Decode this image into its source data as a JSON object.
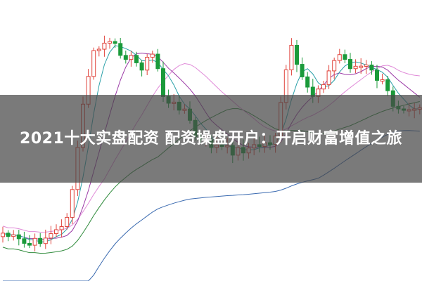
{
  "article": {
    "title": "2021十大实盘配资 配资操盘开户：开启财富增值之旅"
  },
  "colors": {
    "up_candle": "#e0443c",
    "down_candle": "#1a9a3a",
    "ma_short": "#2aa0a8",
    "ma_mid": "#9b3aa6",
    "ma_long": "#2e8a3a",
    "ma_longer": "#e08ad8",
    "ma_longest": "#3a6ab0",
    "overlay": "#464646"
  }
}
